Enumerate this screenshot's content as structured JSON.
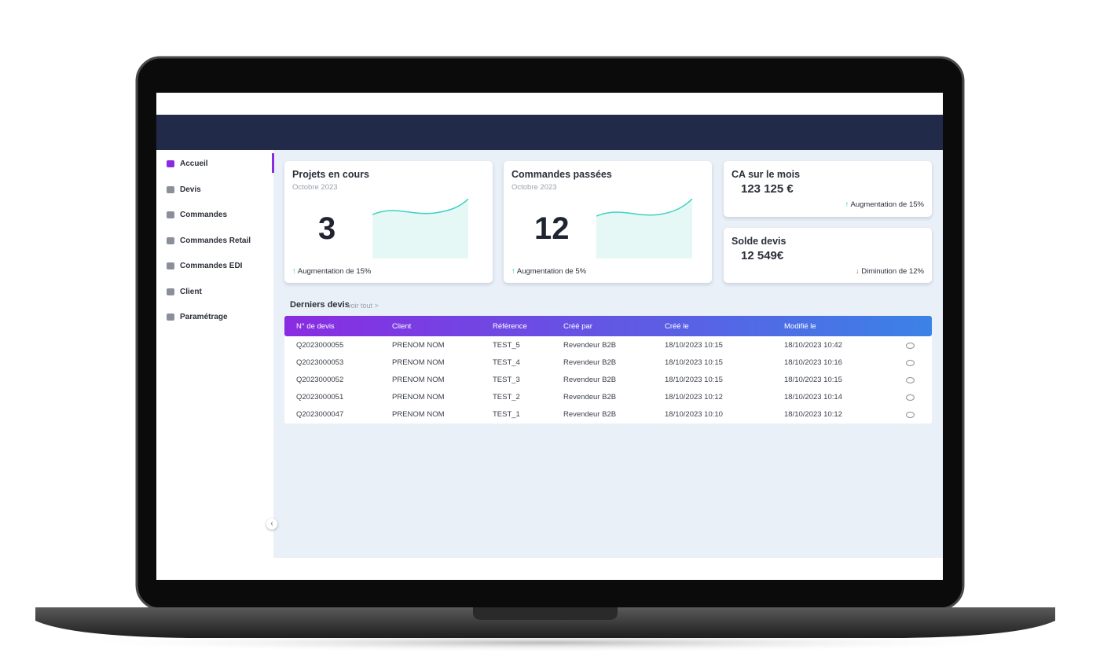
{
  "sidebar": {
    "items": [
      "Accueil",
      "Devis",
      "Commandes",
      "Commandes Retail",
      "Commandes EDI",
      "Client",
      "Paramétrage"
    ]
  },
  "cards": [
    {
      "title": "Projets en cours",
      "subtitle": "Octobre 2023",
      "value": "3",
      "trend": "Augmentation de 15%"
    },
    {
      "title": "Commandes passées",
      "subtitle": "Octobre 2023",
      "value": "12",
      "trend": "Augmentation de 5%"
    },
    {
      "title": "CA sur le mois",
      "value": "123 125 €",
      "trend": "Augmentation de 15%"
    },
    {
      "title": "Solde devis",
      "value": "12 549€",
      "trend": "Diminution de 12%"
    }
  ],
  "table": {
    "title": "Derniers devis",
    "link": "voir tout >",
    "columns": [
      "N° de devis",
      "Client",
      "Référence",
      "Créé par",
      "Créé le",
      "Modifié le"
    ],
    "rows": [
      [
        "Q2023000055",
        "PRENOM NOM",
        "TEST_5",
        "Revendeur B2B",
        "18/10/2023 10:15",
        "18/10/2023 10:42"
      ],
      [
        "Q2023000053",
        "PRENOM NOM",
        "TEST_4",
        "Revendeur B2B",
        "18/10/2023 10:15",
        "18/10/2023 10:16"
      ],
      [
        "Q2023000052",
        "PRENOM NOM",
        "TEST_3",
        "Revendeur B2B",
        "18/10/2023 10:15",
        "18/10/2023 10:15"
      ],
      [
        "Q2023000051",
        "PRENOM NOM",
        "TEST_2",
        "Revendeur B2B",
        "18/10/2023 10:12",
        "18/10/2023 10:14"
      ],
      [
        "Q2023000047",
        "PRENOM NOM",
        "TEST_1",
        "Revendeur B2B",
        "18/10/2023 10:10",
        "18/10/2023 10:12"
      ]
    ]
  }
}
